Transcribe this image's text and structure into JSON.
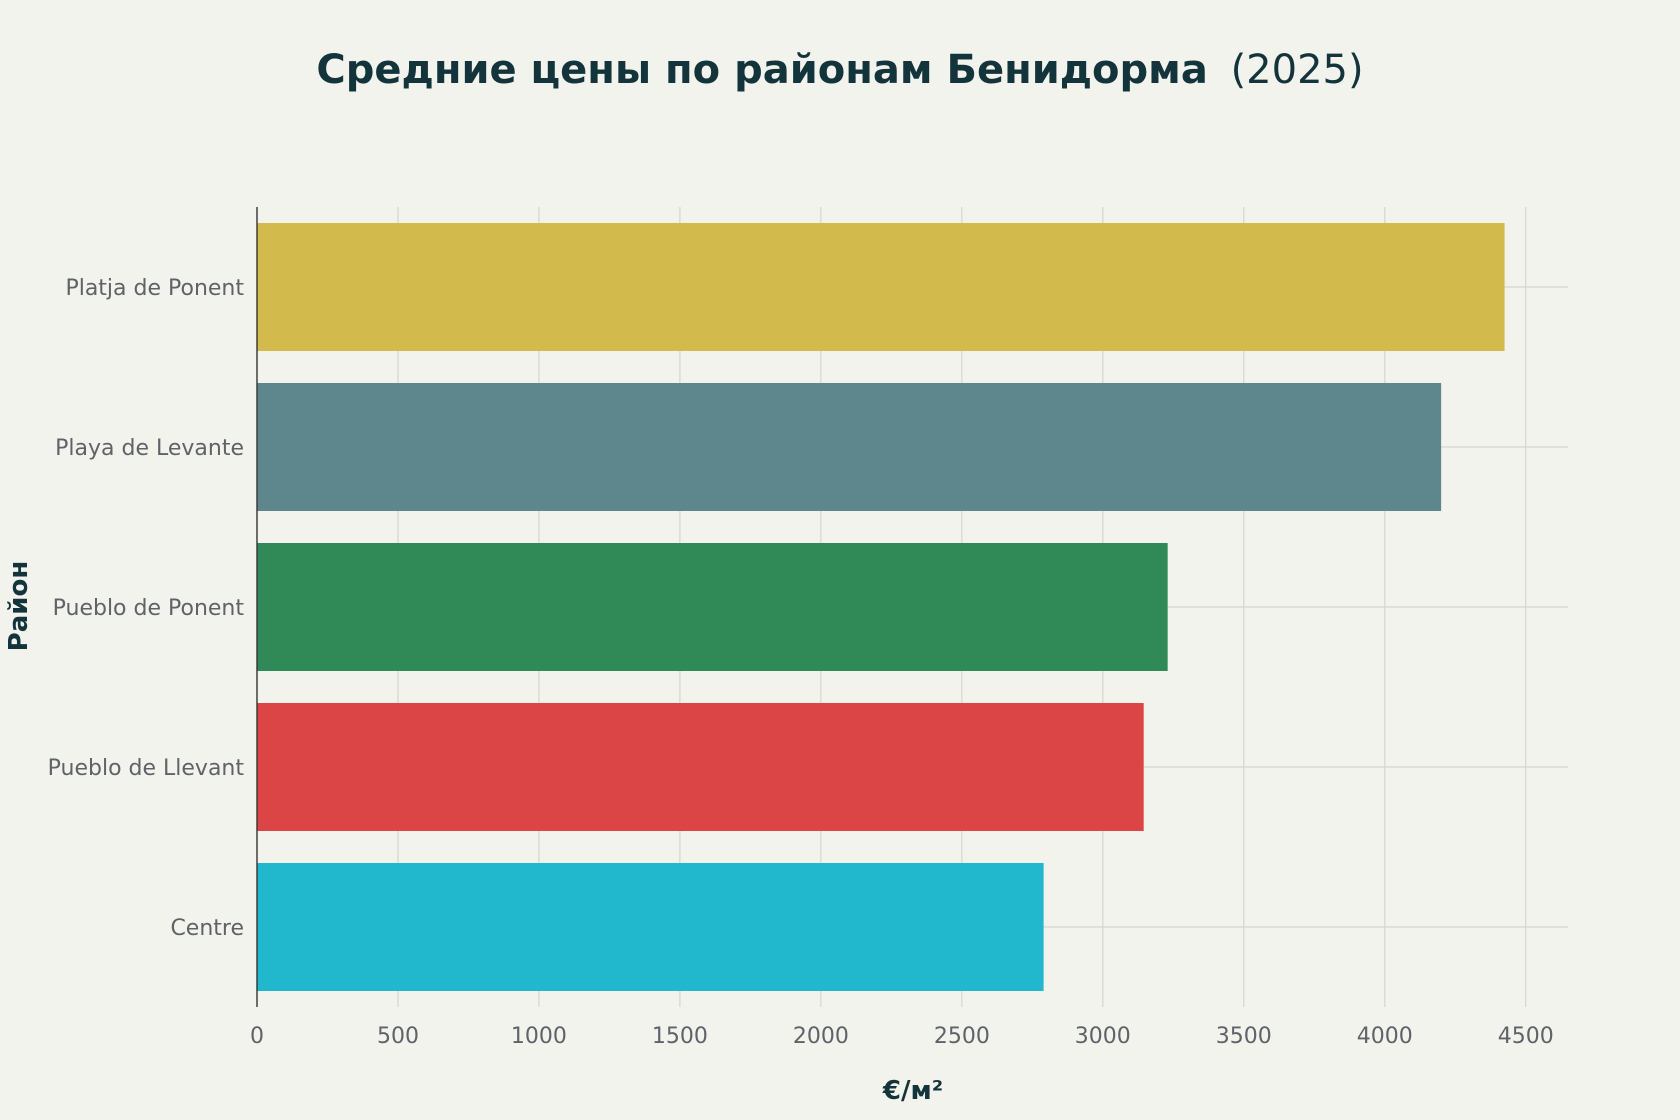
{
  "chart_data": {
    "type": "bar",
    "orientation": "horizontal",
    "title_main": "Средние цены по районам Бенидорма",
    "title_year": "(2025)",
    "xlabel": "€/м²",
    "ylabel": "Район",
    "categories": [
      "Platja de Ponent",
      "Playa de Levante",
      "Pueblo de Ponent",
      "Pueblo de Llevant",
      "Centre"
    ],
    "values": [
      4425,
      4200,
      3230,
      3145,
      2790
    ],
    "colors": [
      "#d2ba4c",
      "#5e878d",
      "#2f8a58",
      "#db4545",
      "#21b7cd"
    ],
    "xlim": [
      0,
      4650
    ],
    "xticks": [
      0,
      500,
      1000,
      1500,
      2000,
      2500,
      3000,
      3500,
      4000,
      4500
    ],
    "grid": true,
    "legend": false
  }
}
